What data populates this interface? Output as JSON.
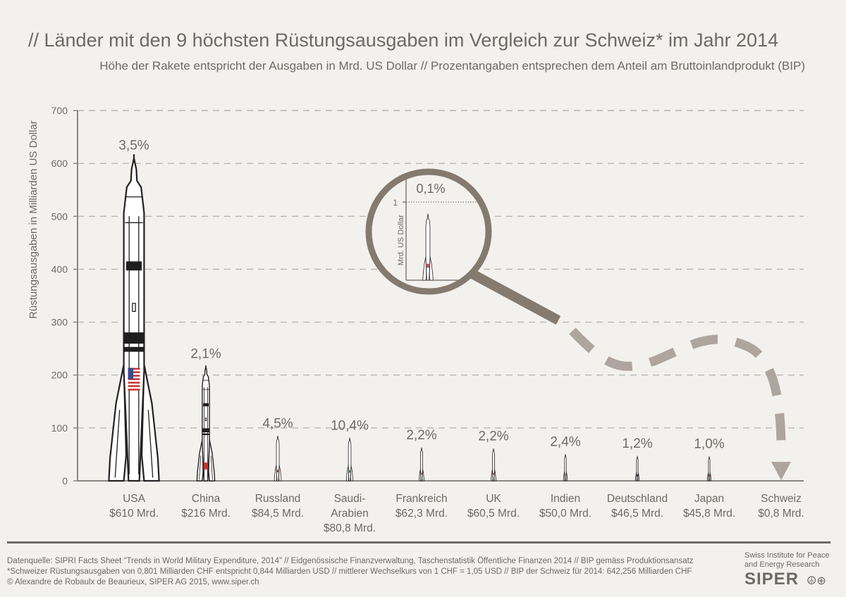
{
  "header": {
    "title": "// Länder mit den 9 höchsten Rüstungsausgaben im Vergleich zur Schweiz* im Jahr 2014",
    "subtitle": "Höhe der Rakete entspricht der Ausgaben in Mrd. US Dollar // Prozentangaben entsprechen dem Anteil am Bruttoinlandprodukt (BIP)"
  },
  "chart_data": {
    "type": "bar",
    "title": "// Länder mit den 9 höchsten Rüstungsausgaben im Vergleich zur Schweiz* im Jahr 2014",
    "ylabel": "Rüstungsausgaben in Milliarden US Dollar",
    "ylim": [
      0,
      700
    ],
    "yticks": [
      0,
      100,
      200,
      300,
      400,
      500,
      600,
      700
    ],
    "grid": true,
    "categories": [
      {
        "name": "USA",
        "name2": "",
        "value": 610,
        "value_label": "$610 Mrd.",
        "pct": "3,5%"
      },
      {
        "name": "China",
        "name2": "",
        "value": 216,
        "value_label": "$216 Mrd.",
        "pct": "2,1%"
      },
      {
        "name": "Russland",
        "name2": "",
        "value": 84.5,
        "value_label": "$84,5 Mrd.",
        "pct": "4,5%"
      },
      {
        "name": "Saudi-",
        "name2": "Arabien",
        "value": 80.8,
        "value_label": "$80,8 Mrd.",
        "pct": "10,4%"
      },
      {
        "name": "Frankreich",
        "name2": "",
        "value": 62.3,
        "value_label": "$62,3 Mrd.",
        "pct": "2,2%"
      },
      {
        "name": "UK",
        "name2": "",
        "value": 60.5,
        "value_label": "$60,5 Mrd.",
        "pct": "2,2%"
      },
      {
        "name": "Indien",
        "name2": "",
        "value": 50.0,
        "value_label": "$50,0 Mrd.",
        "pct": "2,4%"
      },
      {
        "name": "Deutschland",
        "name2": "",
        "value": 46.5,
        "value_label": "$46,5 Mrd.",
        "pct": "1,2%"
      },
      {
        "name": "Japan",
        "name2": "",
        "value": 45.8,
        "value_label": "$45,8 Mrd.",
        "pct": "1,0%"
      },
      {
        "name": "Schweiz",
        "name2": "",
        "value": 0.8,
        "value_label": "$0,8 Mrd.",
        "pct": "0,1%"
      }
    ],
    "inset": {
      "ylabel": "Mrd. US Dollar",
      "ytick": "1",
      "ytick_value": 1,
      "pct": "0,1%",
      "value": 0.844
    }
  },
  "colors": {
    "background": "#f2f1ee",
    "text": "#6e6a66",
    "axis": "#8a8682",
    "grid": "#b9b6b2",
    "lens": "#857a70",
    "dash": "#ada59e",
    "rocket_fill": "#ffffff",
    "rocket_line": "#222222",
    "rocket_band": "#1e1e1e",
    "flag_red": "#c9302c",
    "flag_blue": "#3b4a8c"
  },
  "footer": {
    "source_line1": "Datenquelle: SIPRI Facts Sheet “Trends in World Military Expenditure, 2014” // Eidgenössische Finanzverwaltung, Taschenstatistik Öffentliche Finanzen 2014 // BIP gemäss Produktionsansatz",
    "source_line2": "*Schweizer Rüstungsausgaben von 0,801 Milliarden CHF entspricht 0,844 Milliarden USD // mittlerer Wechselkurs von 1 CHF = 1,05 USD // BIP der Schweiz für 2014: 642,256 Milliarden CHF",
    "source_line3": "© Alexandre de Robaulx de Beaurieux, SIPER AG 2015, www.siper.ch",
    "org_line1": "Swiss Institute for Peace",
    "org_line2": "and Energy Research",
    "brand": "SIPER",
    "brand_mark": "☮⊕"
  }
}
